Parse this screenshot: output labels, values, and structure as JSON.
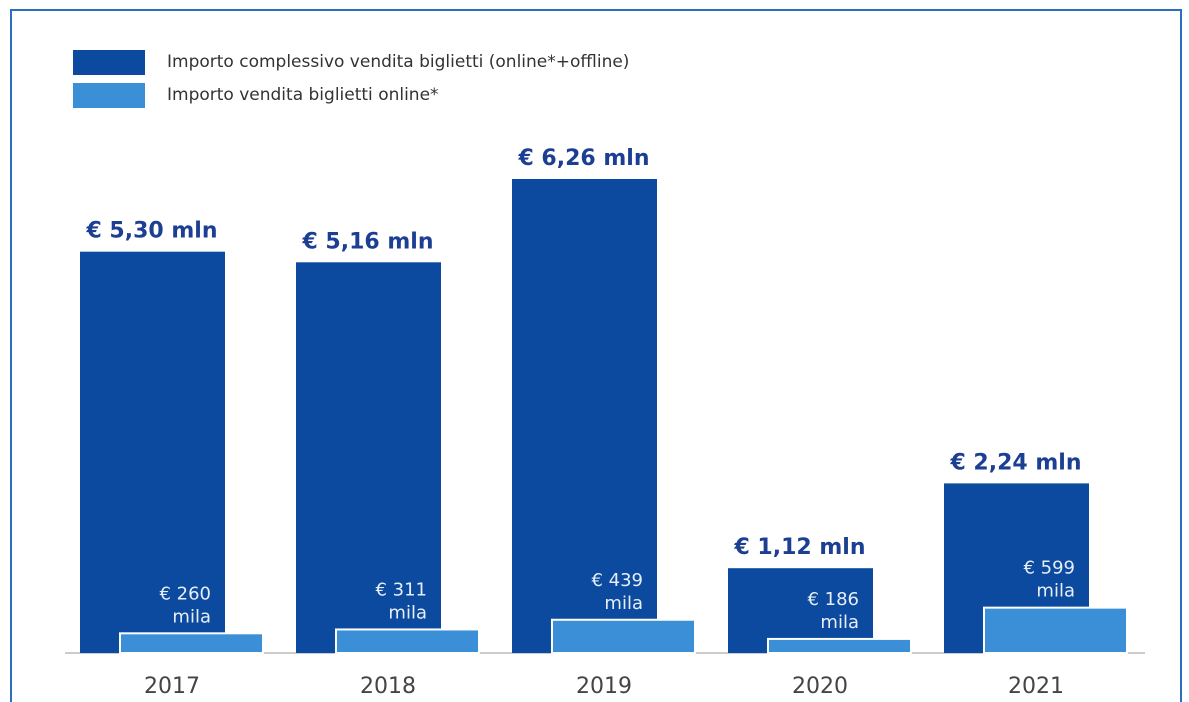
{
  "chart_data": {
    "type": "bar",
    "categories": [
      "2017",
      "2018",
      "2019",
      "2020",
      "2021"
    ],
    "series": [
      {
        "name": "Importo complessivo vendita biglietti (online*+offline)",
        "color": "#0b4a9e",
        "values": [
          5300000,
          5160000,
          6260000,
          1120000,
          2240000
        ],
        "value_labels": [
          "€ 5,30 mln",
          "€ 5,16 mln",
          "€ 6,26 mln",
          "€ 1,12 mln",
          "€ 2,24 mln"
        ]
      },
      {
        "name": "Importo vendita biglietti online*",
        "color": "#3b8fd6",
        "values": [
          260000,
          311000,
          439000,
          186000,
          599000
        ],
        "value_labels": [
          "€ 260 mila",
          "€ 311 mila",
          "€ 439 mila",
          "€ 186 mila",
          "€ 599 mila"
        ]
      }
    ]
  }
}
